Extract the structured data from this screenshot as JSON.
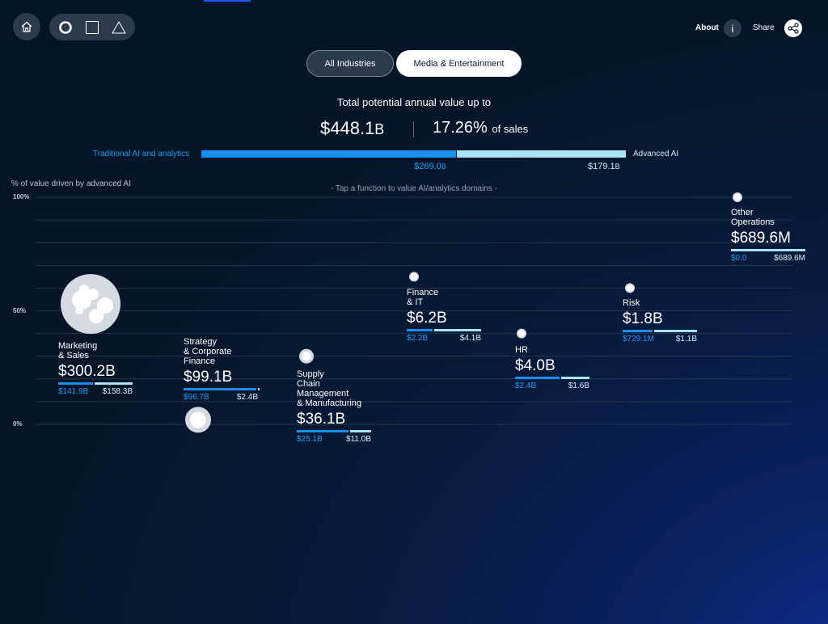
{
  "header": {
    "home_icon": "home-icon",
    "shape_icons": [
      "circle-icon",
      "square-icon",
      "triangle-icon"
    ],
    "about_label": "About",
    "info_label": "i",
    "share_label": "Share",
    "share_icon": "share-icon"
  },
  "filters": {
    "all_label": "All Industries",
    "media_label": "Media & Entertainment"
  },
  "summary": {
    "headline": "Total potential annual value up to",
    "total_value": "$448.1",
    "total_suffix": "B",
    "pct_value": "17.26%",
    "pct_suffix": "of sales",
    "traditional_label": "Traditional AI and analytics",
    "advanced_label": "Advanced AI",
    "traditional_value": "$269.0",
    "traditional_suffix": "B",
    "advanced_value": "$179.1",
    "advanced_suffix": "B",
    "traditional_amount": 269.0,
    "advanced_amount": 179.1
  },
  "chart_data": {
    "type": "scatter",
    "ylabel": "% of value driven by advanced AI",
    "instruction": "- Tap a function to value AI/analytics domains -",
    "yticks": [
      "100%",
      "50%",
      "0%"
    ],
    "ylim": [
      0,
      100
    ],
    "grid": true,
    "colors": {
      "traditional": "#1a8ff2",
      "advanced": "#a9e2f3"
    },
    "functions": [
      {
        "name_lines": [
          "Marketing",
          "& Sales"
        ],
        "value": "$300.2B",
        "traditional": "$141.9B",
        "advanced": "$158.3B",
        "trad_amount": 141.9,
        "adv_amount": 158.3,
        "pct_advanced": 53
      },
      {
        "name_lines": [
          "Strategy",
          "& Corporate",
          "Finance"
        ],
        "value": "$99.1B",
        "traditional": "$96.7B",
        "advanced": "$2.4B",
        "trad_amount": 96.7,
        "adv_amount": 2.4,
        "pct_advanced": 2
      },
      {
        "name_lines": [
          "Supply",
          "Chain",
          "Management",
          "& Manufacturing"
        ],
        "value": "$36.1B",
        "traditional": "$25.1B",
        "advanced": "$11.0B",
        "trad_amount": 25.1,
        "adv_amount": 11.0,
        "pct_advanced": 30
      },
      {
        "name_lines": [
          "Finance",
          "& IT"
        ],
        "value": "$6.2B",
        "traditional": "$2.2B",
        "advanced": "$4.1B",
        "trad_amount": 2.2,
        "adv_amount": 4.1,
        "pct_advanced": 65
      },
      {
        "name_lines": [
          "HR"
        ],
        "value": "$4.0B",
        "traditional": "$2.4B",
        "advanced": "$1.6B",
        "trad_amount": 2.4,
        "adv_amount": 1.6,
        "pct_advanced": 40
      },
      {
        "name_lines": [
          "Risk"
        ],
        "value": "$1.8B",
        "traditional": "$729.1M",
        "advanced": "$1.1B",
        "trad_amount": 0.7291,
        "adv_amount": 1.1,
        "pct_advanced": 60
      },
      {
        "name_lines": [
          "Other",
          "Operations"
        ],
        "value": "$689.6M",
        "traditional": "$0.0",
        "advanced": "$689.6M",
        "trad_amount": 0.0,
        "adv_amount": 0.6896,
        "pct_advanced": 100
      }
    ]
  }
}
